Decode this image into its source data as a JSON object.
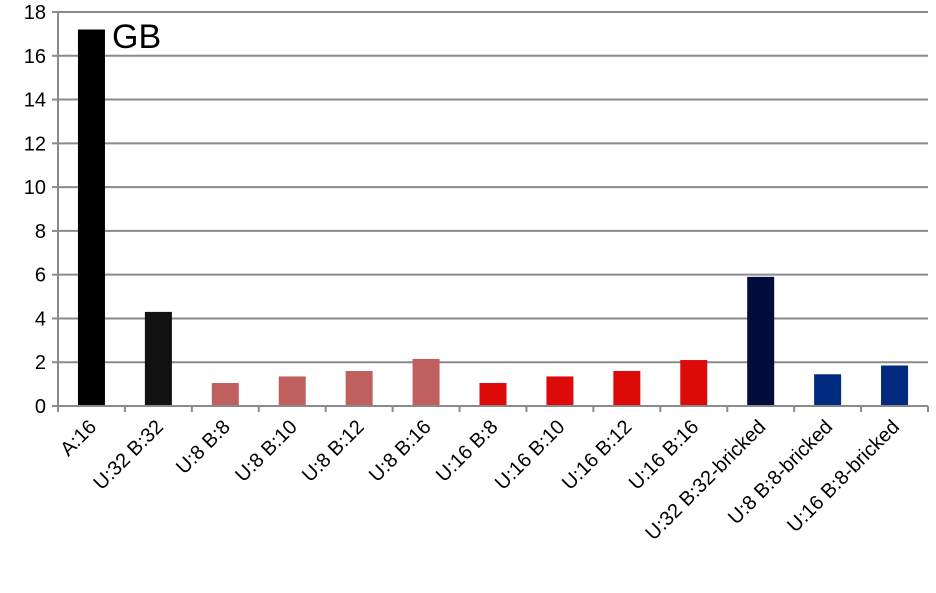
{
  "chart_data": {
    "type": "bar",
    "title": "",
    "xlabel": "",
    "ylabel": "GB",
    "ylim": [
      0,
      18
    ],
    "yticks": [
      0,
      2,
      4,
      6,
      8,
      10,
      12,
      14,
      16,
      18
    ],
    "grid": true,
    "legend": "none",
    "categories": [
      "A:16",
      "U:32 B:32",
      "U:8 B:8",
      "U:8 B:10",
      "U:8 B:12",
      "U:8 B:16",
      "U:16 B:8",
      "U:16 B:10",
      "U:16 B:12",
      "U:16 B:16",
      "U:32 B:32-bricked",
      "U:8 B:8-bricked",
      "U:16 B:8-bricked"
    ],
    "values": [
      17.2,
      4.3,
      1.05,
      1.35,
      1.6,
      2.15,
      1.05,
      1.35,
      1.6,
      2.1,
      5.9,
      1.45,
      1.85
    ],
    "colors": [
      "#000000",
      "#111111",
      "#c0605e",
      "#c0605e",
      "#c0605e",
      "#c0605e",
      "#dd0a0a",
      "#dd0a0a",
      "#dd0a0a",
      "#dd0a0a",
      "#010c3a",
      "#002b80",
      "#002b80"
    ]
  }
}
